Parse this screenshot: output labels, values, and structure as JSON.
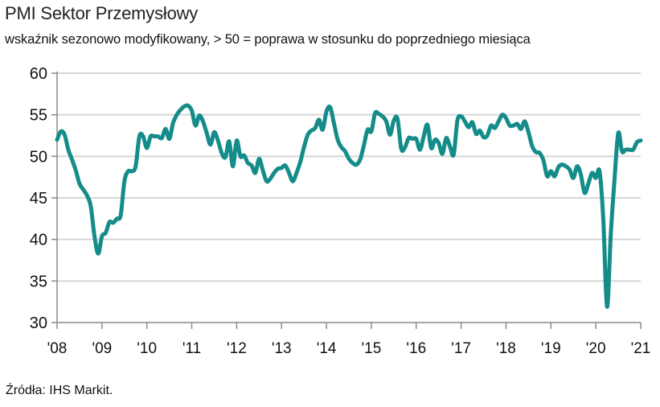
{
  "chart_data": {
    "type": "line",
    "title": "PMI Sektor Przemysłowy",
    "subtitle": "wskaźnik sezonowo modyfikowany, > 50 = poprawa w stosunku do poprzedniego miesiąca",
    "xlabel": "",
    "ylabel": "",
    "ylim": [
      30,
      60
    ],
    "yticks": [
      30,
      35,
      40,
      45,
      50,
      55,
      60
    ],
    "ytick_labels": [
      "30",
      "35",
      "40",
      "45",
      "50",
      "55",
      "60"
    ],
    "xlim": [
      "2008-01",
      "2021-01"
    ],
    "xtick_labels": [
      "'08",
      "'09",
      "'10",
      "'11",
      "'12",
      "'13",
      "'14",
      "'15",
      "'16",
      "'17",
      "'18",
      "'19",
      "'20",
      "'21"
    ],
    "grid": true,
    "legend": "none",
    "color": "#148c8a",
    "series": [
      {
        "name": "PMI Sektor Przemysłowy",
        "start": "2008-01",
        "frequency": "monthly",
        "values": [
          52.0,
          53.0,
          52.6,
          50.8,
          49.6,
          48.3,
          46.7,
          46.0,
          45.3,
          44.0,
          40.4,
          38.3,
          40.4,
          40.8,
          42.1,
          42.0,
          42.5,
          42.9,
          47.0,
          48.2,
          48.2,
          48.8,
          52.4,
          52.4,
          51.0,
          52.4,
          52.4,
          52.4,
          52.2,
          53.3,
          52.1,
          54.0,
          55.0,
          55.6,
          56.0,
          56.1,
          55.5,
          53.7,
          54.9,
          54.2,
          52.8,
          51.4,
          52.9,
          51.9,
          50.4,
          49.9,
          51.8,
          48.8,
          51.9,
          50.0,
          50.1,
          49.2,
          48.9,
          48.0,
          49.7,
          48.3,
          47.0,
          47.3,
          48.0,
          48.5,
          48.6,
          48.9,
          48.0,
          47.0,
          48.0,
          49.3,
          51.1,
          52.6,
          53.1,
          53.4,
          54.4,
          53.2,
          55.4,
          55.9,
          54.0,
          52.0,
          51.1,
          50.6,
          49.7,
          49.2,
          49.0,
          49.6,
          51.3,
          53.2,
          53.0,
          55.2,
          55.1,
          54.8,
          54.2,
          52.6,
          54.3,
          54.5,
          50.9,
          51.1,
          52.2,
          52.1,
          52.1,
          50.8,
          52.4,
          53.8,
          51.0,
          52.0,
          51.6,
          50.3,
          52.2,
          51.2,
          50.2,
          54.3,
          54.8,
          54.2,
          53.5,
          54.1,
          52.7,
          53.1,
          52.3,
          52.5,
          53.7,
          53.4,
          54.2,
          55.0,
          54.6,
          53.7,
          53.7,
          53.9,
          53.3,
          54.2,
          52.9,
          51.2,
          50.5,
          50.4,
          49.5,
          47.6,
          48.2,
          47.6,
          48.7,
          49.0,
          48.8,
          48.4,
          47.4,
          48.8,
          47.8,
          45.6,
          46.7,
          48.0,
          47.4,
          48.2,
          42.4,
          31.9,
          40.6,
          47.2,
          52.8,
          50.6,
          50.8,
          50.8,
          50.8,
          51.7,
          51.9
        ]
      }
    ]
  },
  "source": "Źródła: IHS Markit."
}
